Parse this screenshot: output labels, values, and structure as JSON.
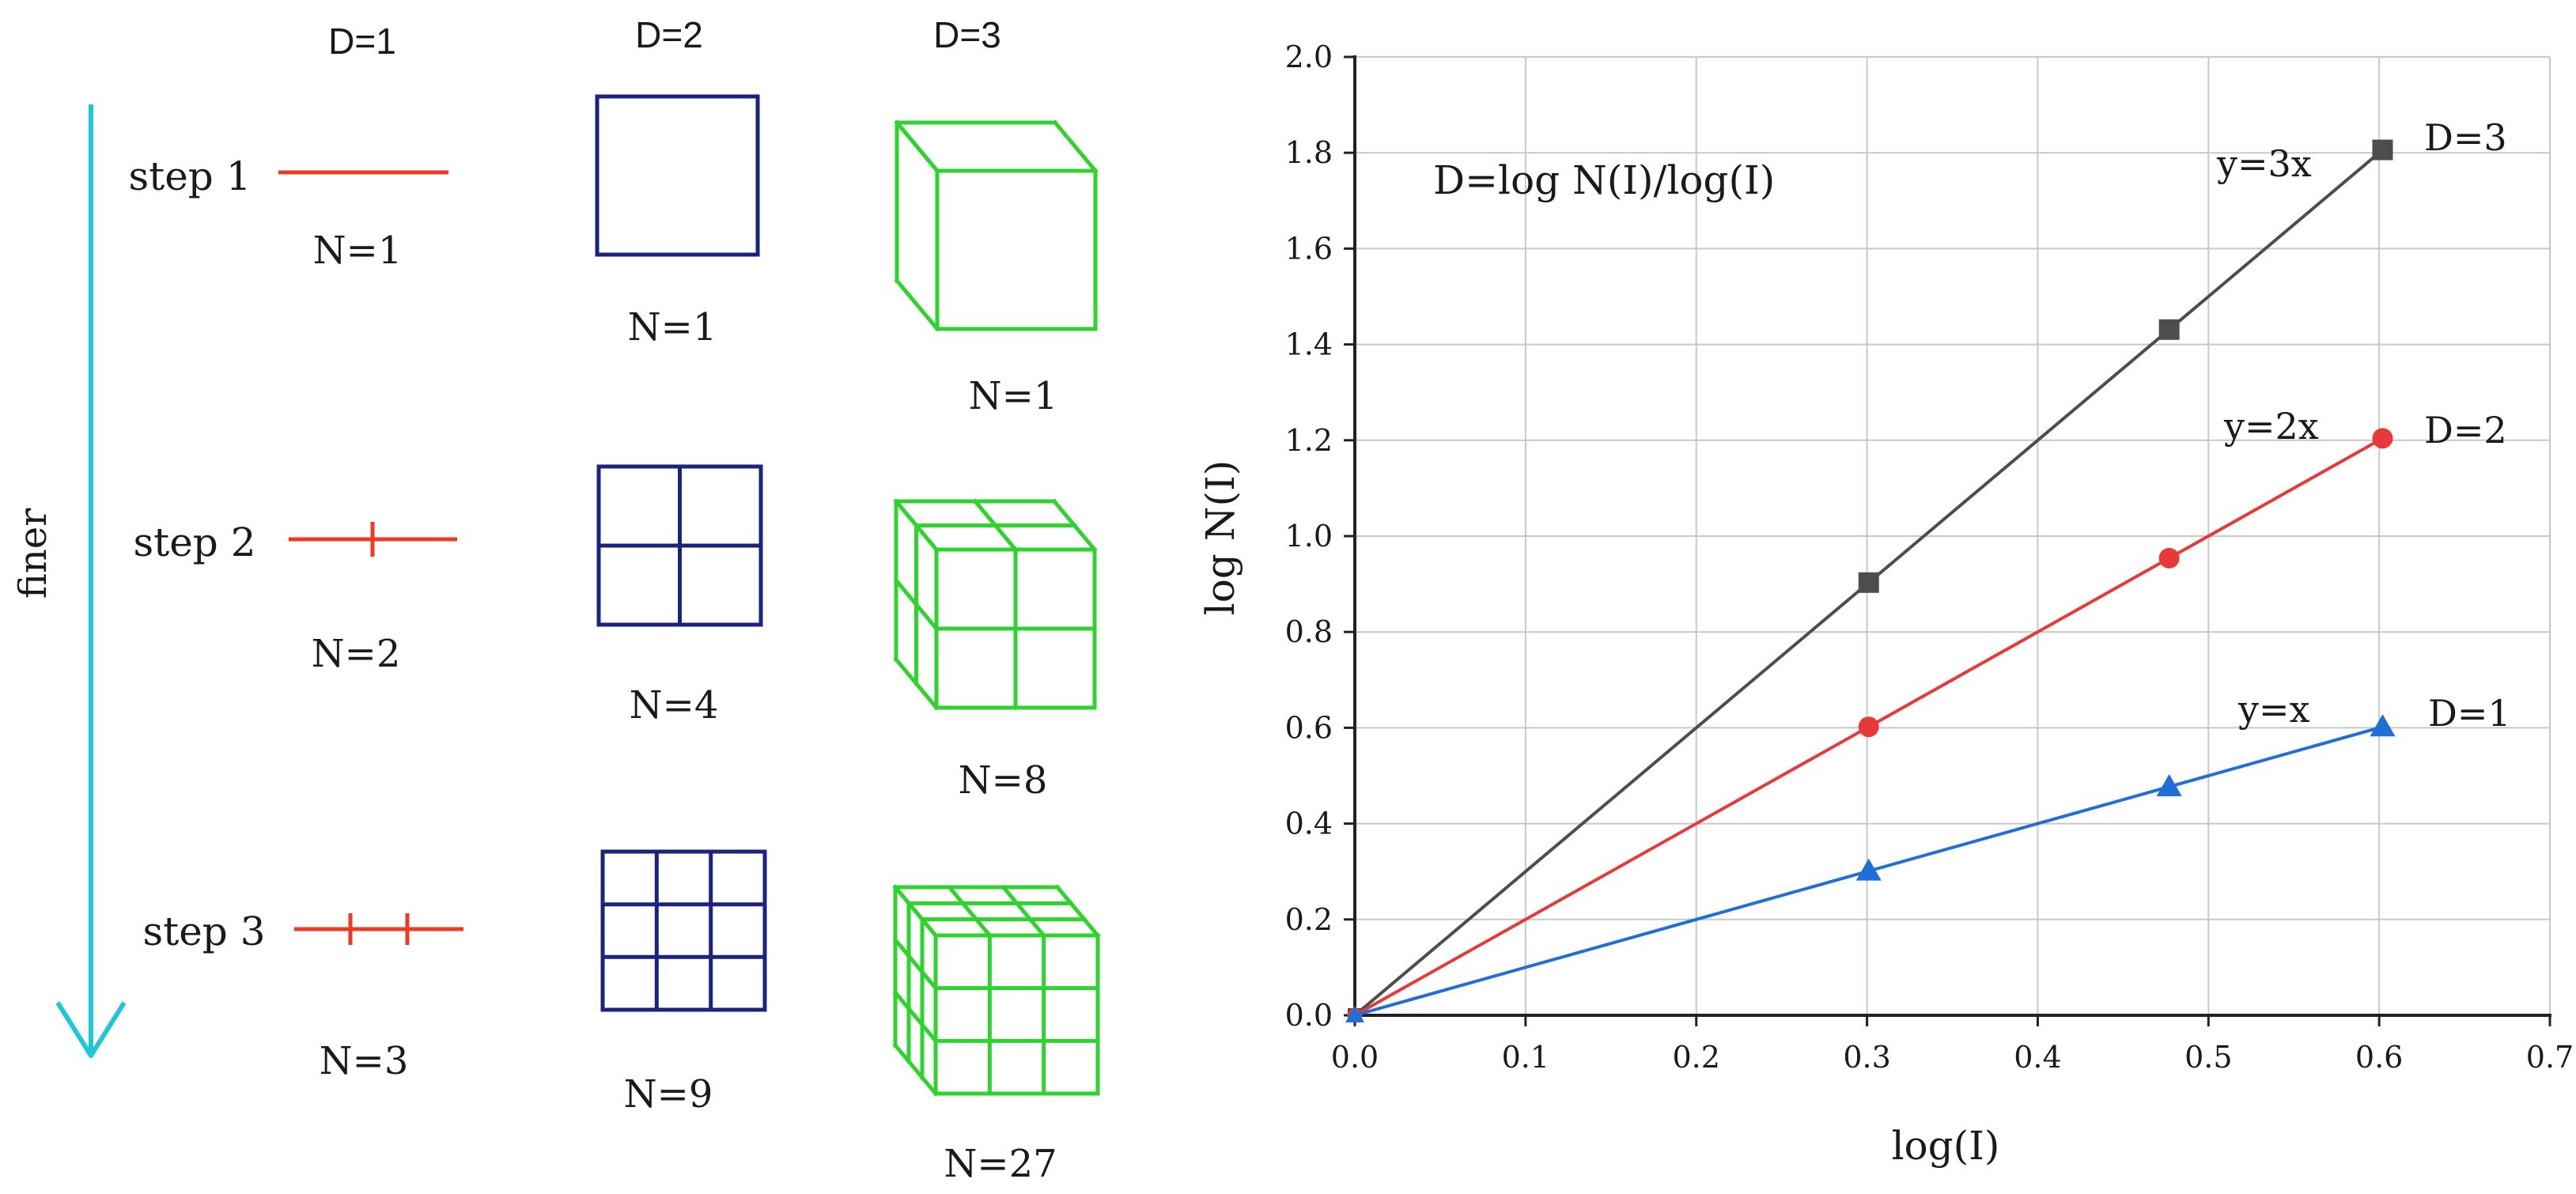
{
  "colors": {
    "line_1d": "#ee3a24",
    "square_2d": "#1a237e",
    "cube_3d": "#2ed32e",
    "arrow": "#1ec8d6",
    "series_d3": "#4d4d4d",
    "series_d2": "#e63a3a",
    "series_d1": "#1f6fd6",
    "grid": "#c8c8c8"
  },
  "left": {
    "dim_headers": [
      "D=1",
      "D=2",
      "D=3"
    ],
    "arrow_label": "finer",
    "steps": [
      {
        "label": "step 1",
        "n_line": "N=1",
        "n_square": "N=1",
        "n_cube": "N=1",
        "divisions": 1
      },
      {
        "label": "step 2",
        "n_line": "N=2",
        "n_square": "N=4",
        "n_cube": "N=8",
        "divisions": 2
      },
      {
        "label": "step 3",
        "n_line": "N=3",
        "n_square": "N=9",
        "n_cube": "N=27",
        "divisions": 3
      }
    ]
  },
  "chart_data": {
    "type": "line",
    "title": "",
    "xlabel": "log(I)",
    "ylabel": "log N(I)",
    "xlim": [
      0,
      0.7
    ],
    "ylim": [
      0,
      2.0
    ],
    "x_ticks": [
      "0.0",
      "0.1",
      "0.2",
      "0.3",
      "0.4",
      "0.5",
      "0.6",
      "0.7"
    ],
    "y_ticks": [
      "0.0",
      "0.2",
      "0.4",
      "0.6",
      "0.8",
      "1.0",
      "1.2",
      "1.4",
      "1.6",
      "1.8",
      "2.0"
    ],
    "grid": true,
    "formula": "D=log N(I)/log(I)",
    "series": [
      {
        "name": "D=3",
        "equation": "y=3x",
        "marker": "square",
        "color": "#4d4d4d",
        "x": [
          0,
          0.301,
          0.477,
          0.602
        ],
        "y": [
          0,
          0.903,
          1.431,
          1.806
        ]
      },
      {
        "name": "D=2",
        "equation": "y=2x",
        "marker": "circle",
        "color": "#e63a3a",
        "x": [
          0,
          0.301,
          0.477,
          0.602
        ],
        "y": [
          0,
          0.602,
          0.954,
          1.204
        ]
      },
      {
        "name": "D=1",
        "equation": "y=x",
        "marker": "triangle",
        "color": "#1f6fd6",
        "x": [
          0,
          0.301,
          0.477,
          0.602
        ],
        "y": [
          0,
          0.301,
          0.477,
          0.602
        ]
      }
    ]
  }
}
